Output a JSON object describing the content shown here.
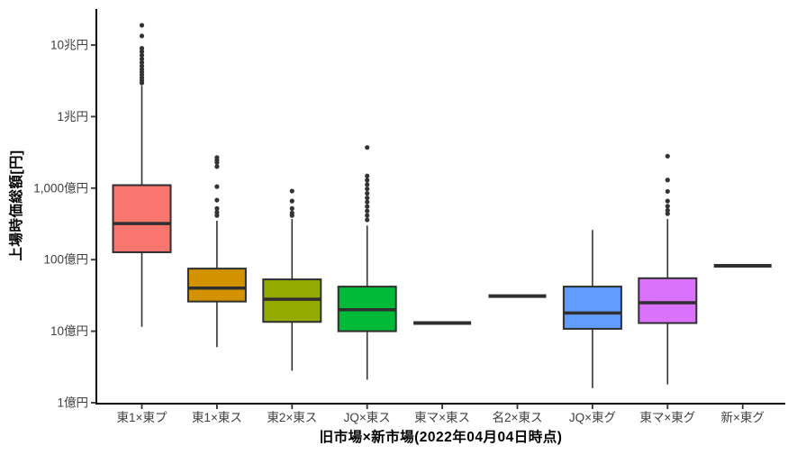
{
  "chart_data": {
    "type": "boxplot",
    "title": "",
    "xlabel": "旧市場×新市場(2022年04月04日時点)",
    "ylabel": "上場時価総額[円]",
    "y_scale": "log10",
    "y_unit": "億円",
    "ylim": [
      1,
      320000
    ],
    "grid": false,
    "legend": "none",
    "y_ticks": [
      {
        "value": 1,
        "label": "1億円"
      },
      {
        "value": 10,
        "label": "10億円"
      },
      {
        "value": 100,
        "label": "100億円"
      },
      {
        "value": 1000,
        "label": "1,000億円"
      },
      {
        "value": 10000,
        "label": "1兆円"
      },
      {
        "value": 100000,
        "label": "10兆円"
      }
    ],
    "categories": [
      {
        "label": "東1×東プ",
        "fill": "#F8766D",
        "whisker_low": 11.5,
        "q1": 127,
        "median": 320,
        "q3": 1100,
        "whisker_high": 27000,
        "outliers": [
          29500,
          32000,
          35000,
          38500,
          42000,
          46000,
          51000,
          57000,
          64000,
          72000,
          81000,
          90000,
          134000,
          189000
        ]
      },
      {
        "label": "東1×東ス",
        "fill": "#D39200",
        "whisker_low": 6,
        "q1": 26,
        "median": 40,
        "q3": 75,
        "whisker_high": 350,
        "outliers": [
          415,
          460,
          520,
          680,
          1050,
          2000,
          2280,
          2460,
          2680
        ]
      },
      {
        "label": "東2×東ス",
        "fill": "#93AA00",
        "whisker_low": 2.8,
        "q1": 13.5,
        "median": 28,
        "q3": 53,
        "whisker_high": 370,
        "outliers": [
          415,
          450,
          520,
          660,
          910
        ]
      },
      {
        "label": "JQ×東ス",
        "fill": "#00BA38",
        "whisker_low": 2.1,
        "q1": 10,
        "median": 20,
        "q3": 42,
        "whisker_high": 300,
        "outliers": [
          360,
          415,
          480,
          555,
          640,
          730,
          845,
          975,
          1120,
          1290,
          1480,
          3700
        ]
      },
      {
        "label": "東マ×東ス",
        "fill": "#00C19F",
        "whisker_low": 13,
        "q1": 13,
        "median": 13,
        "q3": 13,
        "whisker_high": 13,
        "outliers": []
      },
      {
        "label": "名2×東ス",
        "fill": "#00B9E3",
        "whisker_low": 31,
        "q1": 31,
        "median": 31,
        "q3": 31,
        "whisker_high": 31,
        "outliers": []
      },
      {
        "label": "JQ×東グ",
        "fill": "#619CFF",
        "whisker_low": 1.6,
        "q1": 10.8,
        "median": 18,
        "q3": 42,
        "whisker_high": 260,
        "outliers": []
      },
      {
        "label": "東マ×東グ",
        "fill": "#DB72FB",
        "whisker_low": 1.8,
        "q1": 13,
        "median": 25,
        "q3": 55,
        "whisker_high": 370,
        "outliers": [
          440,
          490,
          560,
          660,
          900,
          1300,
          2800
        ]
      },
      {
        "label": "新×東グ",
        "fill": "#FF61C3",
        "whisker_low": 82,
        "q1": 82,
        "median": 82,
        "q3": 82,
        "whisker_high": 82,
        "outliers": []
      }
    ],
    "colors": {
      "axis_line": "#000000",
      "box_border": "#2F2F2F",
      "median_line": "#2F2F2F",
      "whisker_line": "#333333",
      "outlier_dot": "#333333",
      "tick_text": "#404040",
      "title_text": "#000000",
      "background": "#FFFFFF"
    }
  }
}
